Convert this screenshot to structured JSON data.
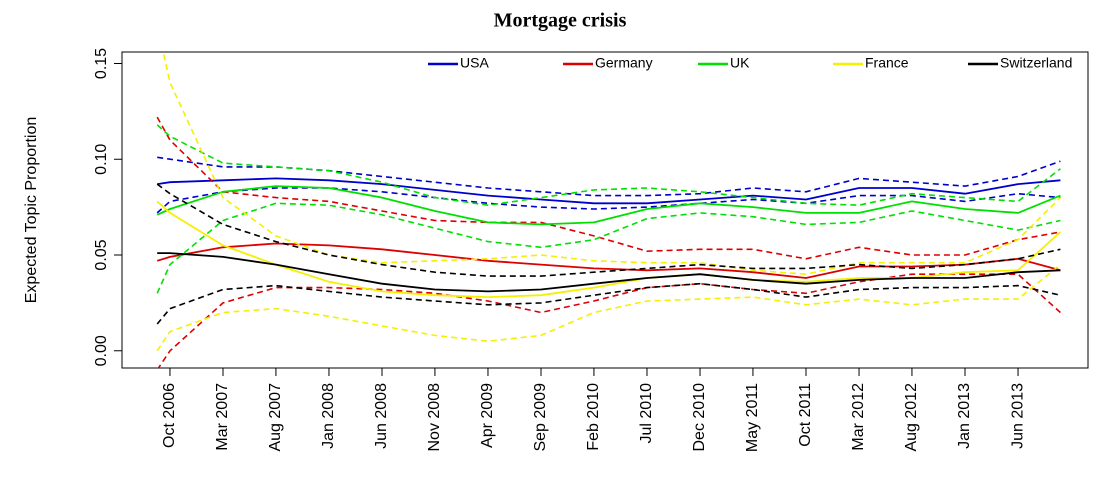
{
  "chart_data": {
    "type": "line",
    "title": "Mortgage crisis",
    "y_label": "Expected Topic Proportion",
    "x": [
      2006.65,
      2006.75,
      2007.167,
      2007.583,
      2008.0,
      2008.417,
      2008.833,
      2009.25,
      2009.667,
      2010.083,
      2010.5,
      2010.917,
      2011.333,
      2011.75,
      2012.167,
      2012.583,
      2013.0,
      2013.417,
      2013.75
    ],
    "xlim": [
      2006.373,
      2013.967
    ],
    "xticks": [
      {
        "value": 2006.75,
        "label": "Oct 2006"
      },
      {
        "value": 2007.167,
        "label": "Mar 2007"
      },
      {
        "value": 2007.583,
        "label": "Aug 2007"
      },
      {
        "value": 2008.0,
        "label": "Jan 2008"
      },
      {
        "value": 2008.417,
        "label": "Jun 2008"
      },
      {
        "value": 2008.833,
        "label": "Nov 2008"
      },
      {
        "value": 2009.25,
        "label": "Apr 2009"
      },
      {
        "value": 2009.667,
        "label": "Sep 2009"
      },
      {
        "value": 2010.083,
        "label": "Feb 2010"
      },
      {
        "value": 2010.5,
        "label": "Jul 2010"
      },
      {
        "value": 2010.917,
        "label": "Dec 2010"
      },
      {
        "value": 2011.333,
        "label": "May 2011"
      },
      {
        "value": 2011.75,
        "label": "Oct 2011"
      },
      {
        "value": 2012.167,
        "label": "Mar 2012"
      },
      {
        "value": 2012.583,
        "label": "Aug 2012"
      },
      {
        "value": 2013.0,
        "label": "Jan 2013"
      },
      {
        "value": 2013.417,
        "label": "Jun 2013"
      }
    ],
    "ylim": [
      -0.009,
      0.156
    ],
    "yticks": [
      {
        "value": 0,
        "label": "0.00"
      },
      {
        "value": 0.05,
        "label": "0.05"
      },
      {
        "value": 0.1,
        "label": "0.10"
      },
      {
        "value": 0.15,
        "label": "0.15"
      }
    ],
    "legend": "top",
    "series": [
      {
        "name": "USA",
        "color": "#0000cc",
        "values": [
          0.087,
          0.088,
          0.089,
          0.09,
          0.089,
          0.087,
          0.084,
          0.081,
          0.079,
          0.077,
          0.077,
          0.079,
          0.081,
          0.079,
          0.085,
          0.085,
          0.082,
          0.087,
          0.089
        ],
        "upper": [
          0.101,
          0.1,
          0.096,
          0.096,
          0.094,
          0.091,
          0.088,
          0.085,
          0.083,
          0.081,
          0.081,
          0.082,
          0.085,
          0.083,
          0.09,
          0.088,
          0.086,
          0.091,
          0.099
        ],
        "lower": [
          0.072,
          0.078,
          0.083,
          0.085,
          0.085,
          0.083,
          0.08,
          0.077,
          0.075,
          0.074,
          0.075,
          0.077,
          0.079,
          0.077,
          0.081,
          0.081,
          0.078,
          0.082,
          0.08
        ]
      },
      {
        "name": "Germany",
        "color": "#dd0000",
        "values": [
          0.047,
          0.049,
          0.054,
          0.056,
          0.055,
          0.053,
          0.05,
          0.047,
          0.045,
          0.043,
          0.042,
          0.043,
          0.041,
          0.038,
          0.044,
          0.044,
          0.045,
          0.048,
          0.042
        ],
        "upper": [
          0.122,
          0.11,
          0.083,
          0.08,
          0.078,
          0.073,
          0.068,
          0.067,
          0.067,
          0.06,
          0.052,
          0.053,
          0.053,
          0.048,
          0.054,
          0.05,
          0.05,
          0.058,
          0.062
        ],
        "lower": [
          -0.01,
          0.0,
          0.025,
          0.033,
          0.033,
          0.032,
          0.03,
          0.026,
          0.02,
          0.026,
          0.033,
          0.035,
          0.032,
          0.03,
          0.036,
          0.04,
          0.04,
          0.04,
          0.02
        ]
      },
      {
        "name": "UK",
        "color": "#00e000",
        "values": [
          0.071,
          0.074,
          0.083,
          0.086,
          0.085,
          0.08,
          0.073,
          0.067,
          0.066,
          0.067,
          0.074,
          0.077,
          0.075,
          0.072,
          0.072,
          0.078,
          0.074,
          0.072,
          0.081
        ],
        "upper": [
          0.118,
          0.112,
          0.098,
          0.096,
          0.094,
          0.088,
          0.08,
          0.076,
          0.08,
          0.084,
          0.085,
          0.083,
          0.08,
          0.077,
          0.076,
          0.082,
          0.08,
          0.078,
          0.095
        ],
        "lower": [
          0.03,
          0.045,
          0.068,
          0.077,
          0.076,
          0.071,
          0.064,
          0.057,
          0.054,
          0.058,
          0.069,
          0.072,
          0.07,
          0.066,
          0.067,
          0.073,
          0.068,
          0.063,
          0.068
        ]
      },
      {
        "name": "France",
        "color": "#f5f000",
        "values": [
          0.078,
          0.072,
          0.055,
          0.045,
          0.036,
          0.031,
          0.029,
          0.028,
          0.029,
          0.033,
          0.038,
          0.04,
          0.037,
          0.036,
          0.038,
          0.038,
          0.041,
          0.042,
          0.062
        ],
        "upper": [
          0.17,
          0.14,
          0.08,
          0.06,
          0.05,
          0.046,
          0.047,
          0.048,
          0.05,
          0.047,
          0.046,
          0.046,
          0.042,
          0.04,
          0.046,
          0.046,
          0.046,
          0.058,
          0.08
        ],
        "lower": [
          0.0,
          0.01,
          0.02,
          0.022,
          0.018,
          0.013,
          0.008,
          0.005,
          0.008,
          0.02,
          0.026,
          0.027,
          0.028,
          0.024,
          0.027,
          0.024,
          0.027,
          0.027,
          0.045
        ]
      },
      {
        "name": "Switzerland",
        "color": "#000000",
        "values": [
          0.051,
          0.051,
          0.049,
          0.045,
          0.04,
          0.035,
          0.032,
          0.031,
          0.032,
          0.035,
          0.038,
          0.04,
          0.037,
          0.035,
          0.037,
          0.038,
          0.038,
          0.041,
          0.042
        ],
        "upper": [
          0.087,
          0.082,
          0.066,
          0.057,
          0.05,
          0.045,
          0.041,
          0.039,
          0.039,
          0.041,
          0.043,
          0.045,
          0.043,
          0.043,
          0.045,
          0.043,
          0.045,
          0.048,
          0.053
        ],
        "lower": [
          0.014,
          0.022,
          0.032,
          0.034,
          0.031,
          0.028,
          0.026,
          0.024,
          0.025,
          0.029,
          0.033,
          0.035,
          0.032,
          0.028,
          0.032,
          0.033,
          0.033,
          0.034,
          0.029
        ]
      }
    ]
  }
}
